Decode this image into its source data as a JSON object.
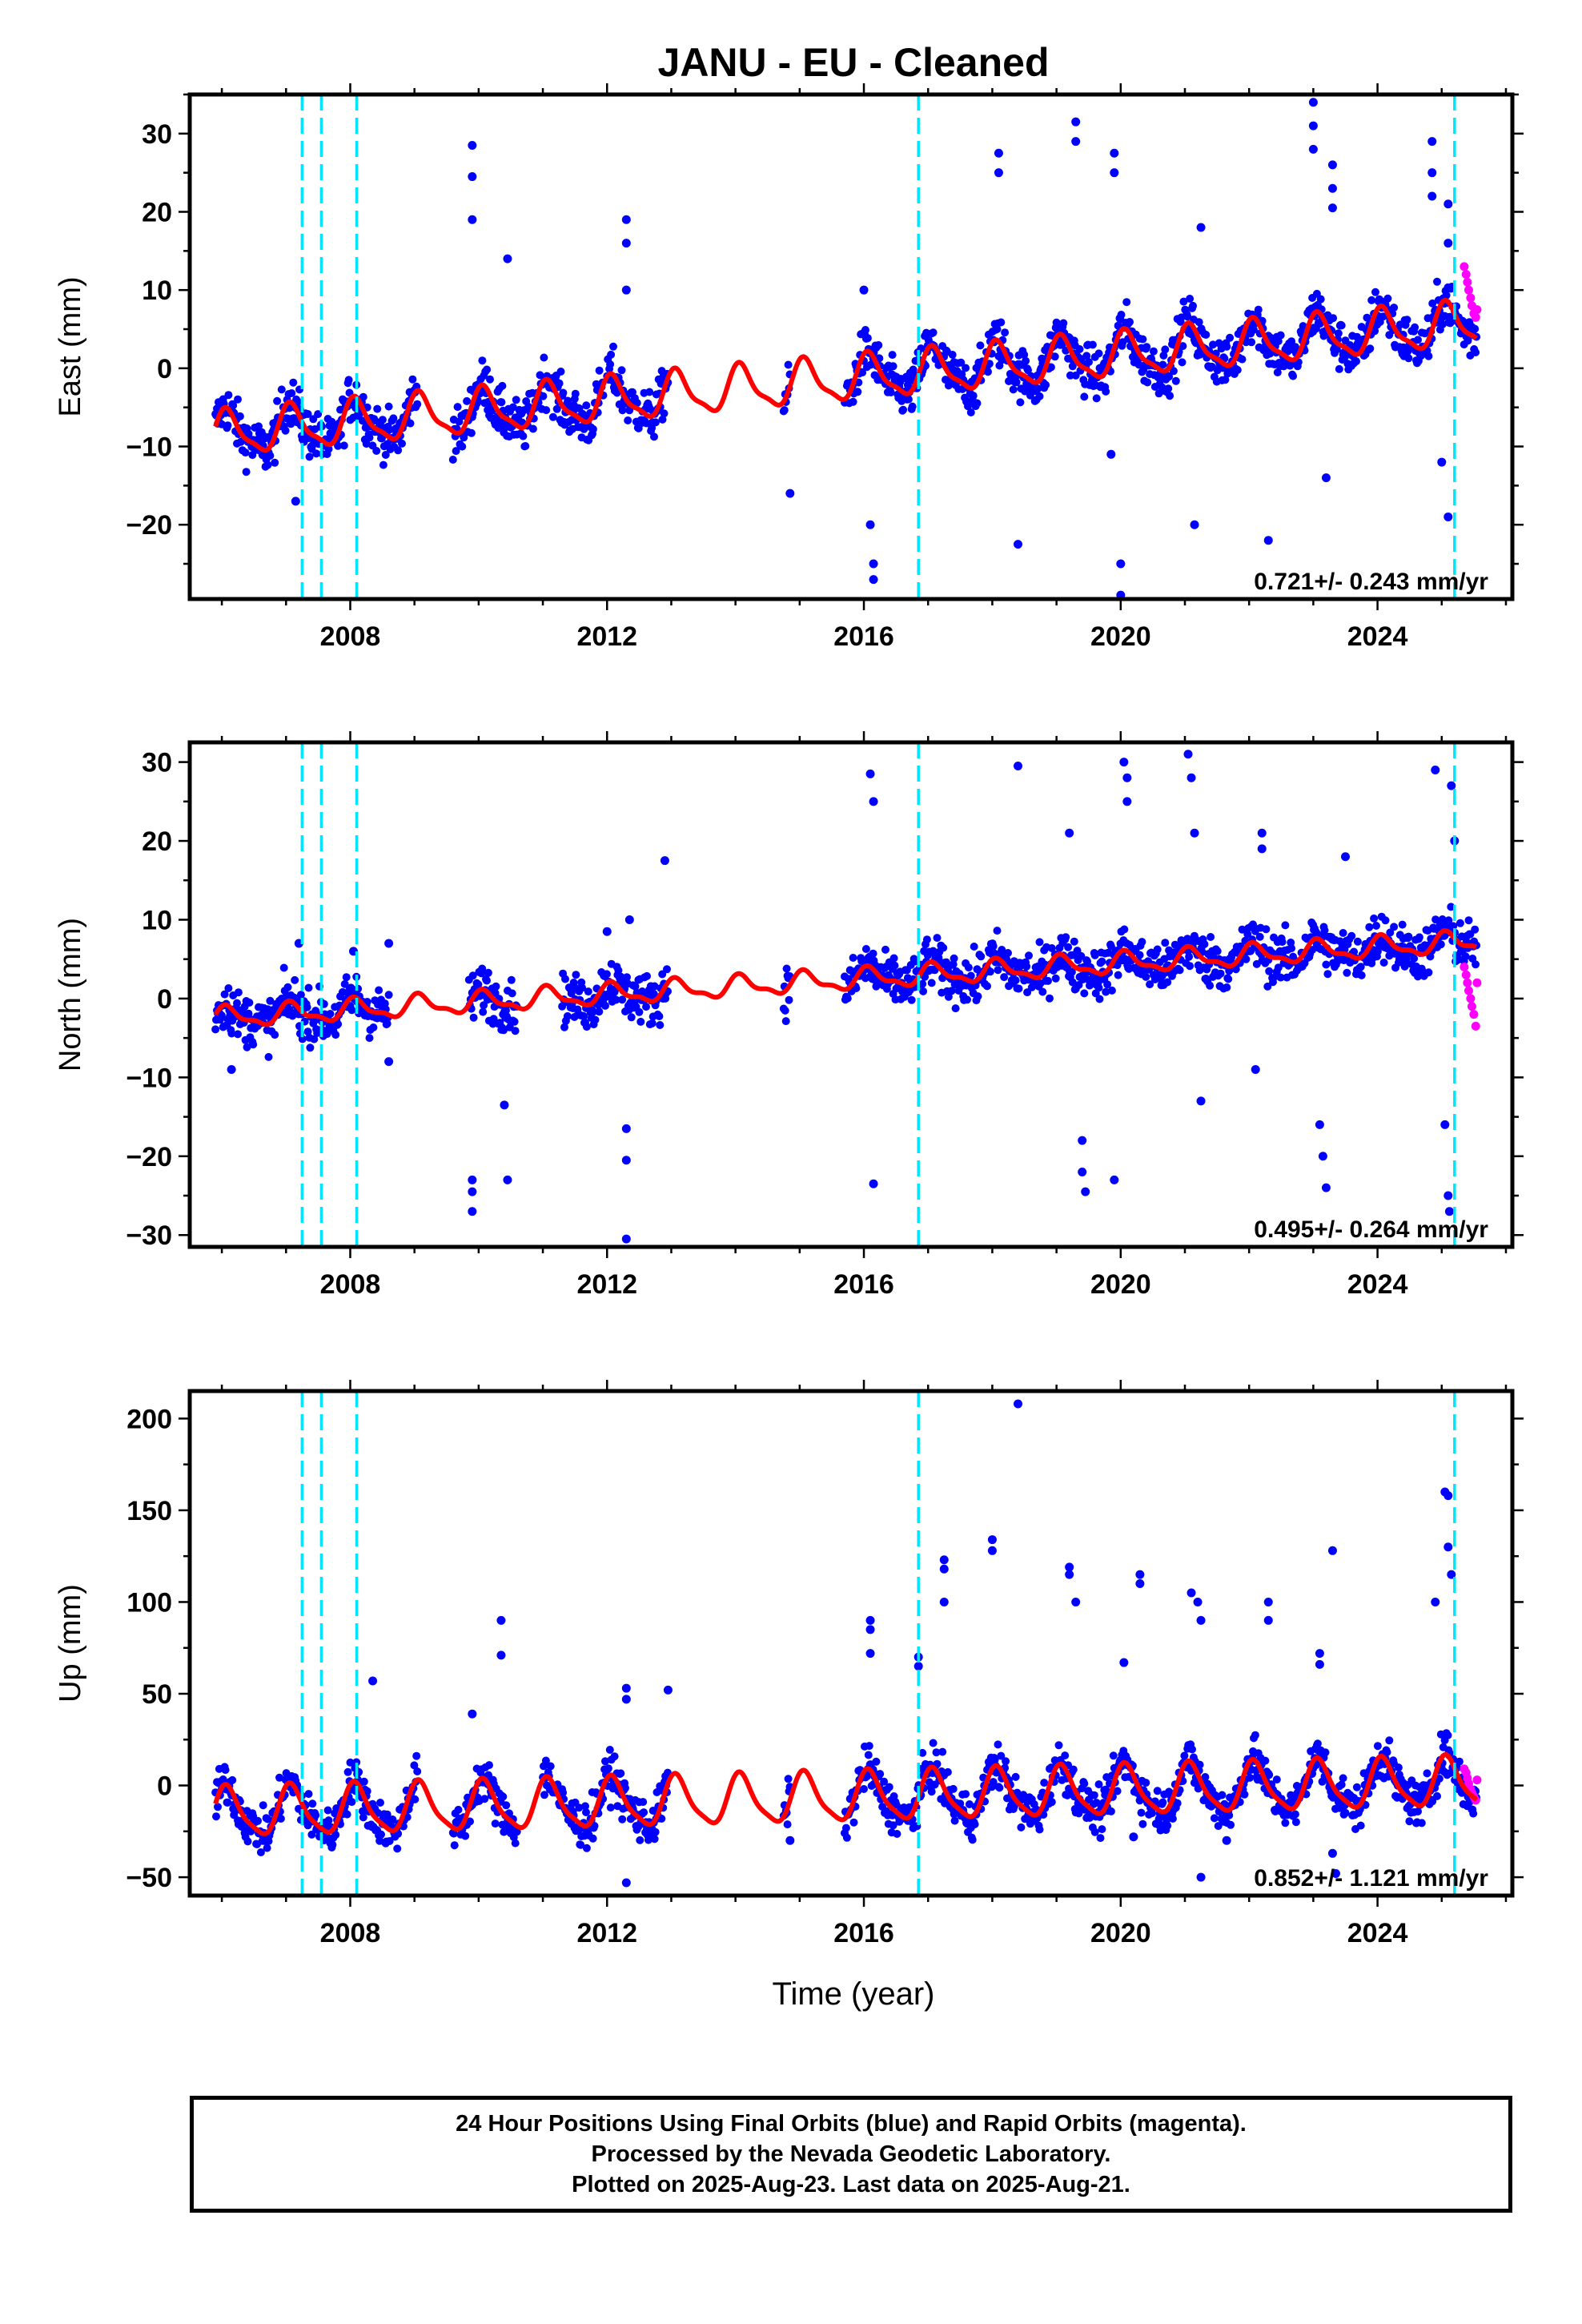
{
  "title": "JANU  - EU - Cleaned",
  "x_axis_label": "Time (year)",
  "footer_lines": [
    "24 Hour Positions Using Final Orbits (blue) and Rapid Orbits (magenta).",
    "Processed by the Nevada Geodetic Laboratory.",
    "Plotted on 2025-Aug-23. Last data on 2025-Aug-21."
  ],
  "colors": {
    "final_orbits": "#0000ff",
    "rapid_orbits": "#ff00ff",
    "model_fit": "#ff0000",
    "equipment_change": "#00e5ff"
  },
  "chart_data": [
    {
      "type": "scatter",
      "component": "east",
      "ylabel": "East (mm)",
      "xlabel": "",
      "xlim": [
        2005.5,
        2026.1
      ],
      "ylim": [
        -29.5,
        35
      ],
      "xticks": [
        2008,
        2012,
        2016,
        2020,
        2024
      ],
      "yticks": [
        -20,
        -10,
        0,
        10,
        20,
        30
      ],
      "velocity_label": "0.721+/- 0.243 mm/yr",
      "equipment_changes": [
        2007.25,
        2007.55,
        2008.1,
        2016.85,
        2025.2
      ],
      "trend": {
        "t0": 2005.9,
        "v0": -8.5,
        "rate": 0.721,
        "amp_annual": 2.7,
        "amp_semiannual": 0.8
      },
      "data_segments": [
        [
          2005.9,
          2009.05
        ],
        [
          2009.6,
          2011.95
        ],
        [
          2012.0,
          2012.95
        ],
        [
          2014.75,
          2014.85
        ],
        [
          2015.7,
          2024.4
        ],
        [
          2024.4,
          2025.55
        ]
      ],
      "outliers": [
        {
          "x": 2007.15,
          "y": -17
        },
        {
          "x": 2009.9,
          "y": 28.5
        },
        {
          "x": 2009.9,
          "y": 24.5
        },
        {
          "x": 2009.9,
          "y": 19
        },
        {
          "x": 2010.45,
          "y": 14
        },
        {
          "x": 2012.3,
          "y": 19
        },
        {
          "x": 2012.3,
          "y": 16
        },
        {
          "x": 2012.3,
          "y": 10
        },
        {
          "x": 2014.85,
          "y": -16
        },
        {
          "x": 2016.0,
          "y": 10
        },
        {
          "x": 2016.1,
          "y": -20
        },
        {
          "x": 2016.15,
          "y": -25
        },
        {
          "x": 2016.15,
          "y": -27
        },
        {
          "x": 2018.1,
          "y": 27.5
        },
        {
          "x": 2018.1,
          "y": 25
        },
        {
          "x": 2018.4,
          "y": -22.5
        },
        {
          "x": 2019.3,
          "y": 31.5
        },
        {
          "x": 2019.3,
          "y": 29
        },
        {
          "x": 2019.9,
          "y": 27.5
        },
        {
          "x": 2019.9,
          "y": 25
        },
        {
          "x": 2020.0,
          "y": -25
        },
        {
          "x": 2020.0,
          "y": -29
        },
        {
          "x": 2021.25,
          "y": 18
        },
        {
          "x": 2023.0,
          "y": 34
        },
        {
          "x": 2023.0,
          "y": 31
        },
        {
          "x": 2023.0,
          "y": 28
        },
        {
          "x": 2023.3,
          "y": 26
        },
        {
          "x": 2023.3,
          "y": 23
        },
        {
          "x": 2023.3,
          "y": 20.5
        },
        {
          "x": 2023.2,
          "y": -14
        },
        {
          "x": 2024.85,
          "y": 29
        },
        {
          "x": 2024.85,
          "y": 25
        },
        {
          "x": 2024.85,
          "y": 22
        },
        {
          "x": 2025.1,
          "y": 21
        },
        {
          "x": 2025.1,
          "y": 16
        },
        {
          "x": 2025.0,
          "y": -12
        },
        {
          "x": 2025.1,
          "y": -19
        },
        {
          "x": 2021.15,
          "y": -20
        },
        {
          "x": 2022.3,
          "y": -22
        },
        {
          "x": 2019.85,
          "y": -11
        }
      ],
      "rapid_points": [
        {
          "x": 2025.35,
          "y": 13
        },
        {
          "x": 2025.38,
          "y": 12
        },
        {
          "x": 2025.4,
          "y": 11
        },
        {
          "x": 2025.42,
          "y": 10
        },
        {
          "x": 2025.45,
          "y": 9
        },
        {
          "x": 2025.47,
          "y": 8
        },
        {
          "x": 2025.5,
          "y": 7
        },
        {
          "x": 2025.53,
          "y": 6.5
        },
        {
          "x": 2025.55,
          "y": 7.5
        }
      ]
    },
    {
      "type": "scatter",
      "component": "north",
      "ylabel": "North (mm)",
      "xlabel": "",
      "xlim": [
        2005.5,
        2026.1
      ],
      "ylim": [
        -31.5,
        32.5
      ],
      "xticks": [
        2008,
        2012,
        2016,
        2020,
        2024
      ],
      "yticks": [
        -30,
        -20,
        -10,
        0,
        10,
        20,
        30
      ],
      "velocity_label": "0.495+/- 0.264 mm/yr",
      "equipment_changes": [
        2007.25,
        2007.55,
        2008.1,
        2016.85,
        2025.2
      ],
      "trend": {
        "t0": 2005.9,
        "v0": -2.5,
        "rate": 0.495,
        "amp_annual": 1.2,
        "amp_semiannual": 0.5
      },
      "data_segments": [
        [
          2005.9,
          2008.6
        ],
        [
          2009.85,
          2010.6
        ],
        [
          2011.3,
          2012.95
        ],
        [
          2014.75,
          2014.85
        ],
        [
          2015.7,
          2024.4
        ],
        [
          2024.4,
          2025.55
        ]
      ],
      "outliers": [
        {
          "x": 2006.15,
          "y": -9
        },
        {
          "x": 2007.2,
          "y": 7
        },
        {
          "x": 2008.05,
          "y": 6
        },
        {
          "x": 2008.6,
          "y": -8
        },
        {
          "x": 2008.6,
          "y": 7
        },
        {
          "x": 2009.9,
          "y": -23
        },
        {
          "x": 2009.9,
          "y": -24.5
        },
        {
          "x": 2009.9,
          "y": -27
        },
        {
          "x": 2010.4,
          "y": -13.5
        },
        {
          "x": 2010.45,
          "y": -23
        },
        {
          "x": 2012.0,
          "y": 8.5
        },
        {
          "x": 2012.3,
          "y": -16.5
        },
        {
          "x": 2012.3,
          "y": -20.5
        },
        {
          "x": 2012.3,
          "y": -30.5
        },
        {
          "x": 2012.35,
          "y": 10
        },
        {
          "x": 2012.9,
          "y": 17.5
        },
        {
          "x": 2016.1,
          "y": 28.5
        },
        {
          "x": 2016.15,
          "y": 25
        },
        {
          "x": 2016.15,
          "y": -23.5
        },
        {
          "x": 2018.4,
          "y": 29.5
        },
        {
          "x": 2019.2,
          "y": 21
        },
        {
          "x": 2019.4,
          "y": -18
        },
        {
          "x": 2019.4,
          "y": -22
        },
        {
          "x": 2019.45,
          "y": -24.5
        },
        {
          "x": 2019.9,
          "y": -23
        },
        {
          "x": 2020.05,
          "y": 30
        },
        {
          "x": 2020.1,
          "y": 28
        },
        {
          "x": 2020.1,
          "y": 25
        },
        {
          "x": 2021.05,
          "y": 31
        },
        {
          "x": 2021.1,
          "y": 28
        },
        {
          "x": 2021.15,
          "y": 21
        },
        {
          "x": 2021.25,
          "y": -13
        },
        {
          "x": 2022.2,
          "y": 21
        },
        {
          "x": 2022.2,
          "y": 19
        },
        {
          "x": 2022.1,
          "y": -9
        },
        {
          "x": 2023.1,
          "y": -16
        },
        {
          "x": 2023.15,
          "y": -20
        },
        {
          "x": 2023.2,
          "y": -24
        },
        {
          "x": 2023.5,
          "y": 18
        },
        {
          "x": 2024.9,
          "y": 29
        },
        {
          "x": 2025.05,
          "y": -16
        },
        {
          "x": 2025.1,
          "y": -25
        },
        {
          "x": 2025.12,
          "y": -27
        },
        {
          "x": 2025.15,
          "y": 27
        },
        {
          "x": 2025.2,
          "y": 20
        }
      ],
      "rapid_points": [
        {
          "x": 2025.35,
          "y": 4
        },
        {
          "x": 2025.38,
          "y": 3
        },
        {
          "x": 2025.4,
          "y": 2
        },
        {
          "x": 2025.42,
          "y": 1
        },
        {
          "x": 2025.45,
          "y": 0
        },
        {
          "x": 2025.47,
          "y": -1
        },
        {
          "x": 2025.5,
          "y": -2
        },
        {
          "x": 2025.53,
          "y": -3.5
        },
        {
          "x": 2025.55,
          "y": 2
        }
      ]
    },
    {
      "type": "scatter",
      "component": "up",
      "ylabel": "Up (mm)",
      "xlabel": "Time (year)",
      "xlim": [
        2005.5,
        2026.1
      ],
      "ylim": [
        -60,
        215
      ],
      "xticks": [
        2008,
        2012,
        2016,
        2020,
        2024
      ],
      "yticks": [
        -50,
        0,
        50,
        100,
        150,
        200
      ],
      "velocity_label": "0.852+/- 1.121 mm/yr",
      "equipment_changes": [
        2007.25,
        2007.55,
        2008.1,
        2016.85,
        2025.2
      ],
      "trend": {
        "t0": 2005.9,
        "v0": -15,
        "rate": 0.852,
        "amp_annual": 13,
        "amp_semiannual": 3
      },
      "data_segments": [
        [
          2005.9,
          2009.05
        ],
        [
          2009.6,
          2010.6
        ],
        [
          2011.0,
          2012.95
        ],
        [
          2014.75,
          2014.85
        ],
        [
          2015.7,
          2024.4
        ],
        [
          2024.4,
          2025.55
        ]
      ],
      "outliers": [
        {
          "x": 2008.35,
          "y": 57
        },
        {
          "x": 2009.9,
          "y": 39
        },
        {
          "x": 2010.35,
          "y": 90
        },
        {
          "x": 2010.35,
          "y": 71
        },
        {
          "x": 2012.3,
          "y": 53
        },
        {
          "x": 2012.3,
          "y": 47
        },
        {
          "x": 2012.95,
          "y": 52
        },
        {
          "x": 2012.3,
          "y": -53
        },
        {
          "x": 2014.85,
          "y": -30
        },
        {
          "x": 2016.1,
          "y": 90
        },
        {
          "x": 2016.1,
          "y": 85
        },
        {
          "x": 2016.1,
          "y": 72
        },
        {
          "x": 2016.85,
          "y": 70
        },
        {
          "x": 2016.85,
          "y": 65
        },
        {
          "x": 2017.25,
          "y": 123
        },
        {
          "x": 2017.25,
          "y": 118
        },
        {
          "x": 2017.25,
          "y": 100
        },
        {
          "x": 2018.0,
          "y": 134
        },
        {
          "x": 2018.0,
          "y": 128
        },
        {
          "x": 2018.4,
          "y": 208
        },
        {
          "x": 2019.2,
          "y": 119
        },
        {
          "x": 2019.2,
          "y": 115
        },
        {
          "x": 2019.3,
          "y": 100
        },
        {
          "x": 2020.05,
          "y": 67
        },
        {
          "x": 2020.3,
          "y": 115
        },
        {
          "x": 2020.3,
          "y": 110
        },
        {
          "x": 2020.2,
          "y": -28
        },
        {
          "x": 2021.1,
          "y": 105
        },
        {
          "x": 2021.2,
          "y": 100
        },
        {
          "x": 2021.25,
          "y": 90
        },
        {
          "x": 2021.25,
          "y": -50
        },
        {
          "x": 2021.65,
          "y": -30
        },
        {
          "x": 2022.3,
          "y": 100
        },
        {
          "x": 2022.3,
          "y": 90
        },
        {
          "x": 2023.1,
          "y": 72
        },
        {
          "x": 2023.1,
          "y": 66
        },
        {
          "x": 2023.3,
          "y": 128
        },
        {
          "x": 2023.3,
          "y": -37
        },
        {
          "x": 2023.35,
          "y": -48
        },
        {
          "x": 2024.9,
          "y": 100
        },
        {
          "x": 2025.05,
          "y": 160
        },
        {
          "x": 2025.1,
          "y": 158
        },
        {
          "x": 2025.1,
          "y": 130
        },
        {
          "x": 2025.15,
          "y": 115
        }
      ],
      "rapid_points": [
        {
          "x": 2025.35,
          "y": 9
        },
        {
          "x": 2025.38,
          "y": 7
        },
        {
          "x": 2025.4,
          "y": 4
        },
        {
          "x": 2025.42,
          "y": 1
        },
        {
          "x": 2025.45,
          "y": -2
        },
        {
          "x": 2025.47,
          "y": -4
        },
        {
          "x": 2025.5,
          "y": -6
        },
        {
          "x": 2025.53,
          "y": -8
        },
        {
          "x": 2025.55,
          "y": 3
        }
      ]
    }
  ]
}
